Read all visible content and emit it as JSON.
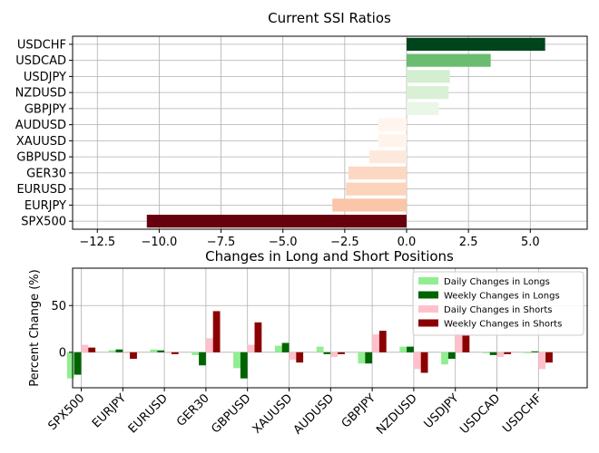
{
  "chart_data": [
    {
      "type": "bar",
      "orientation": "horizontal",
      "title": "Current SSI Ratios",
      "xlabel": "",
      "ylabel": "",
      "xlim": [
        -13.5,
        7.3
      ],
      "xticks": [
        -12.5,
        -10.0,
        -7.5,
        -5.0,
        -2.5,
        0.0,
        2.5,
        5.0
      ],
      "xtick_labels": [
        "−12.5",
        "−10.0",
        "−7.5",
        "−5.0",
        "−2.5",
        "0.0",
        "2.5",
        "5.0"
      ],
      "grid": true,
      "categories": [
        "USDCHF",
        "USDCAD",
        "USDJPY",
        "NZDUSD",
        "GBPJPY",
        "AUDUSD",
        "XAUUSD",
        "GBPUSD",
        "GER30",
        "EURUSD",
        "EURJPY",
        "SPX500"
      ],
      "values": [
        5.6,
        3.4,
        1.75,
        1.7,
        1.3,
        -1.15,
        -1.15,
        -1.5,
        -2.35,
        -2.45,
        -3.0,
        -10.5
      ],
      "colors": [
        "#00441b",
        "#6abc70",
        "#d4eed0",
        "#d9f0d4",
        "#eaf6e6",
        "#fff5ee",
        "#fff4ec",
        "#fde9dc",
        "#fcd7c2",
        "#fcd3bb",
        "#fbc5a9",
        "#67000d"
      ]
    },
    {
      "type": "bar",
      "title": "Changes in Long and Short Positions",
      "xlabel": "",
      "ylabel": "Percent Change (%)",
      "ylim": [
        -38,
        90
      ],
      "yticks": [
        0,
        50
      ],
      "grid": true,
      "legend": "top-right",
      "categories": [
        "SPX500",
        "EURJPY",
        "EURUSD",
        "GER30",
        "GBPUSD",
        "XAUUSD",
        "AUDUSD",
        "GBPJPY",
        "NZDUSD",
        "USDJPY",
        "USDCAD",
        "USDCHF"
      ],
      "series": [
        {
          "name": "Daily Changes in Longs",
          "color": "#90ee90",
          "values": [
            -28,
            2,
            3,
            -3,
            -17,
            7,
            6,
            -12,
            6,
            -13,
            -1,
            -1
          ]
        },
        {
          "name": "Weekly Changes in Longs",
          "color": "#006400",
          "values": [
            -24,
            3,
            2,
            -14,
            -28,
            10,
            -2,
            -12,
            6,
            -7,
            -3,
            1
          ]
        },
        {
          "name": "Daily Changes in Shorts",
          "color": "#ffc0cb",
          "values": [
            8,
            -1,
            -1,
            15,
            8,
            -8,
            -5,
            19,
            -18,
            20,
            -5,
            -18
          ]
        },
        {
          "name": "Weekly Changes in Shorts",
          "color": "#8b0000",
          "values": [
            5,
            -7,
            -2,
            44,
            32,
            -11,
            -2,
            23,
            -22,
            19,
            -2,
            -11
          ]
        }
      ]
    }
  ]
}
